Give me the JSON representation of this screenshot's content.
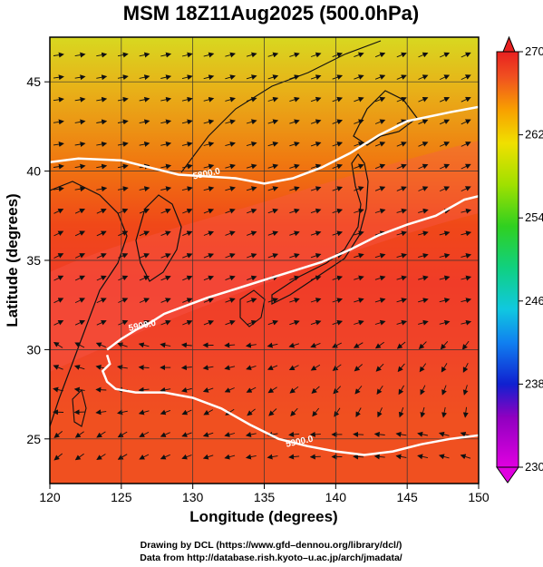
{
  "chart_data": {
    "type": "heatmap",
    "title": "MSM 18Z11Aug2025 (500.0hPa)",
    "xlabel": "Longitude (degrees)",
    "ylabel": "Latitude  (degrees)",
    "xlim": [
      120,
      150
    ],
    "ylim": [
      22.5,
      47.5
    ],
    "x_ticks": [
      "120",
      "125",
      "130",
      "135",
      "140",
      "145",
      "150"
    ],
    "x_tick_values": [
      120,
      125,
      130,
      135,
      140,
      145,
      150
    ],
    "y_ticks": [
      "25",
      "30",
      "35",
      "40",
      "45"
    ],
    "y_tick_values": [
      25,
      30,
      35,
      40,
      45
    ],
    "grid": true,
    "colorbar": {
      "min": 230,
      "max": 270,
      "labels": [
        "230",
        "238",
        "246",
        "254",
        "262",
        "270"
      ],
      "label_values": [
        230,
        238,
        246,
        254,
        262,
        270
      ]
    },
    "contours": [
      {
        "label": "5800.0",
        "label_lon": 131,
        "label_lat": 39.7,
        "points": [
          [
            120,
            40.5
          ],
          [
            122,
            40.7
          ],
          [
            125,
            40.6
          ],
          [
            127,
            40.2
          ],
          [
            129,
            39.8
          ],
          [
            131,
            39.7
          ],
          [
            133,
            39.6
          ],
          [
            135,
            39.3
          ],
          [
            137,
            39.6
          ],
          [
            139,
            40.2
          ],
          [
            141,
            41.0
          ],
          [
            143,
            42.0
          ],
          [
            145,
            42.8
          ],
          [
            148,
            43.3
          ],
          [
            150,
            43.6
          ]
        ]
      },
      {
        "label": "5900.0",
        "label_lon": 126.5,
        "label_lat": 31.2,
        "points": [
          [
            124,
            30.0
          ],
          [
            125,
            30.6
          ],
          [
            126,
            31.1
          ],
          [
            127,
            31.5
          ],
          [
            128,
            32.0
          ],
          [
            129,
            32.3
          ],
          [
            131,
            32.9
          ],
          [
            133,
            33.4
          ],
          [
            135,
            33.9
          ],
          [
            137,
            34.4
          ],
          [
            139,
            34.9
          ],
          [
            141,
            35.6
          ],
          [
            143,
            36.4
          ],
          [
            145,
            37.0
          ],
          [
            147,
            37.5
          ],
          [
            149,
            38.4
          ],
          [
            150,
            38.6
          ]
        ]
      },
      {
        "label": "5900.0",
        "label_lon": 137.5,
        "label_lat": 24.7,
        "points": [
          [
            124,
            29.7
          ],
          [
            124.2,
            29.2
          ],
          [
            123.7,
            28.8
          ],
          [
            124,
            28.2
          ],
          [
            124.6,
            27.8
          ],
          [
            126,
            27.6
          ],
          [
            128,
            27.6
          ],
          [
            130,
            27.3
          ],
          [
            132,
            26.7
          ],
          [
            134,
            25.8
          ],
          [
            136,
            25.0
          ],
          [
            138,
            24.6
          ],
          [
            140,
            24.3
          ],
          [
            142,
            24.1
          ],
          [
            144,
            24.3
          ],
          [
            146,
            24.7
          ],
          [
            148,
            25.0
          ],
          [
            150,
            25.2
          ]
        ]
      }
    ]
  },
  "credits": {
    "line1": "Drawing by DCL (https://www.gfd–dennou.org/library/dcl/)",
    "line2": "Data from http://database.rish.kyoto–u.ac.jp/arch/jmadata/"
  }
}
